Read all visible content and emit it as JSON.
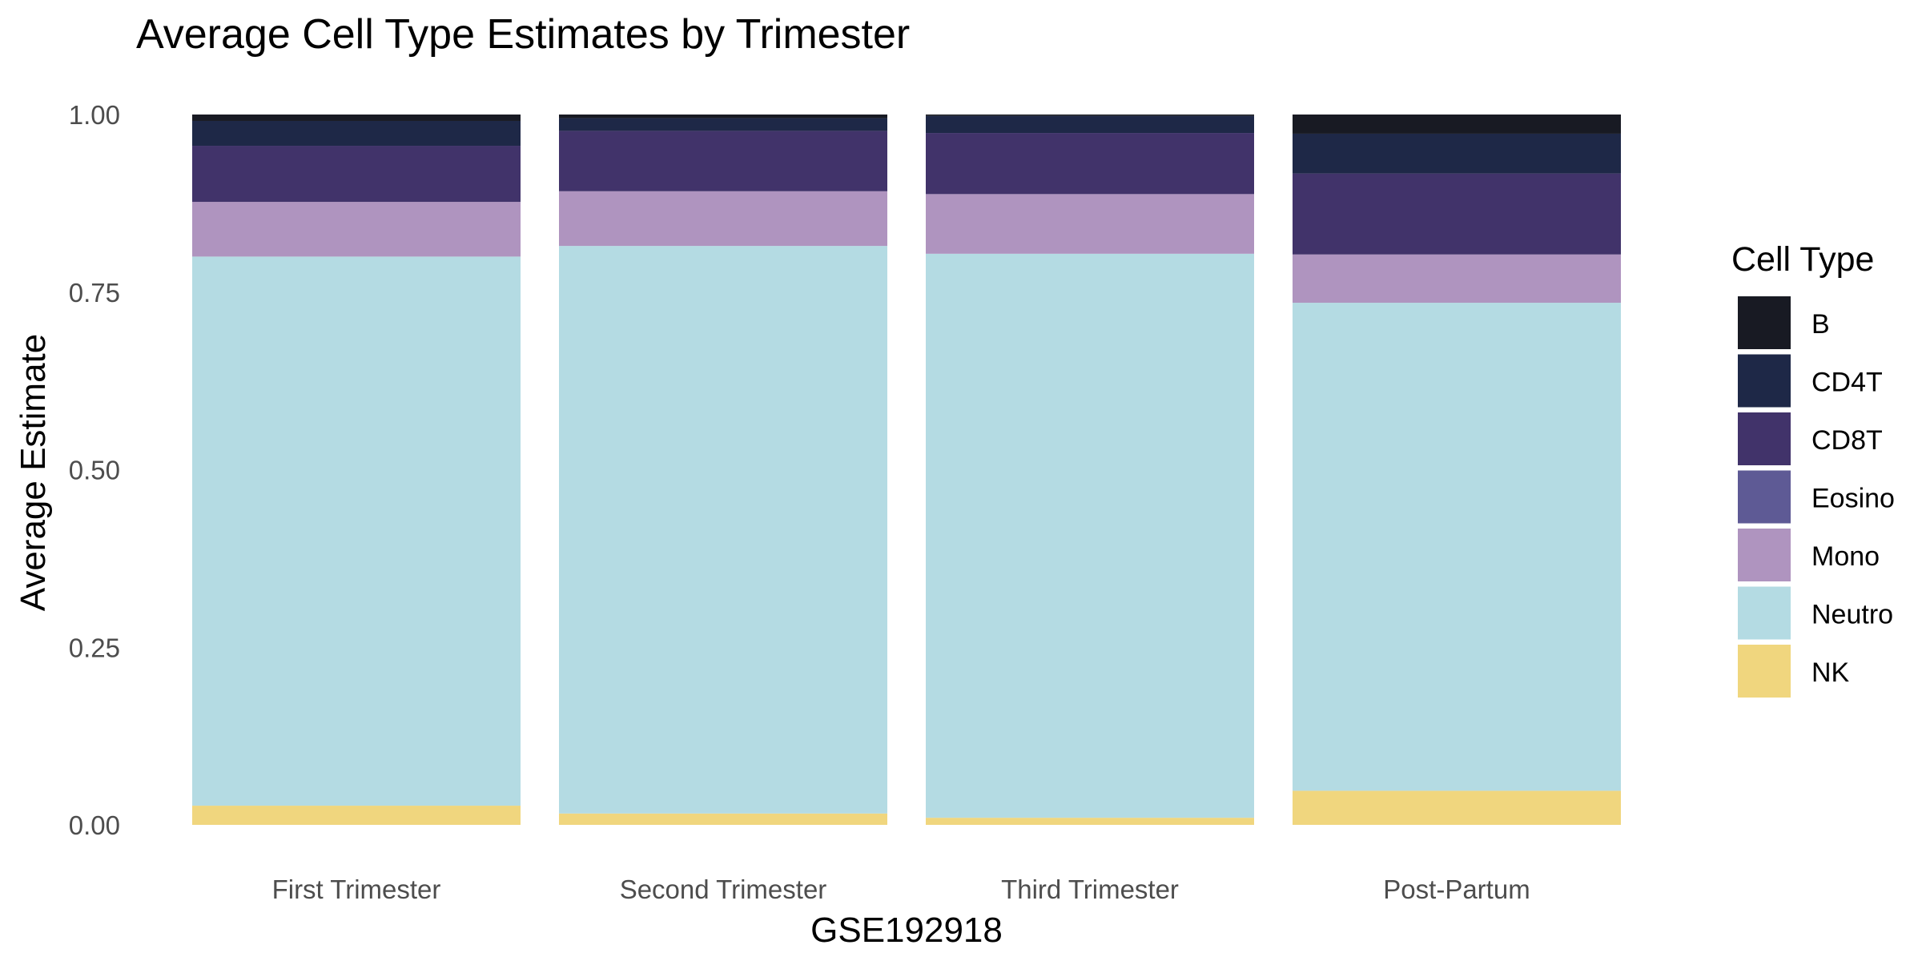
{
  "chart_data": {
    "type": "bar",
    "stacked": true,
    "title": "Average Cell Type Estimates by Trimester",
    "xlabel": "GSE192918",
    "ylabel": "Average Estimate",
    "ylim": [
      0,
      1
    ],
    "y_ticks": [
      "0.00",
      "0.25",
      "0.50",
      "0.75",
      "1.00"
    ],
    "grid": false,
    "categories": [
      "First Trimester",
      "Second Trimester",
      "Third Trimester",
      "Post-Partum"
    ],
    "legend": {
      "title": "Cell Type",
      "position": "right"
    },
    "series": [
      {
        "name": "NK",
        "color": "#F0D67E",
        "values": [
          0.027,
          0.016,
          0.01,
          0.048
        ]
      },
      {
        "name": "Neutro",
        "color": "#B4DBE3",
        "values": [
          0.773,
          0.799,
          0.794,
          0.687
        ]
      },
      {
        "name": "Mono",
        "color": "#AF94BF",
        "values": [
          0.077,
          0.077,
          0.084,
          0.068
        ]
      },
      {
        "name": "Eosino",
        "color": "#5E5A95",
        "values": [
          0.0,
          0.0,
          0.0,
          0.0
        ]
      },
      {
        "name": "CD8T",
        "color": "#41336A",
        "values": [
          0.079,
          0.085,
          0.086,
          0.114
        ]
      },
      {
        "name": "CD4T",
        "color": "#1E2847",
        "values": [
          0.035,
          0.018,
          0.024,
          0.056
        ]
      },
      {
        "name": "B",
        "color": "#181A23",
        "values": [
          0.009,
          0.005,
          0.002,
          0.027
        ]
      }
    ],
    "legend_order": [
      "B",
      "CD4T",
      "CD8T",
      "Eosino",
      "Mono",
      "Neutro",
      "NK"
    ]
  }
}
